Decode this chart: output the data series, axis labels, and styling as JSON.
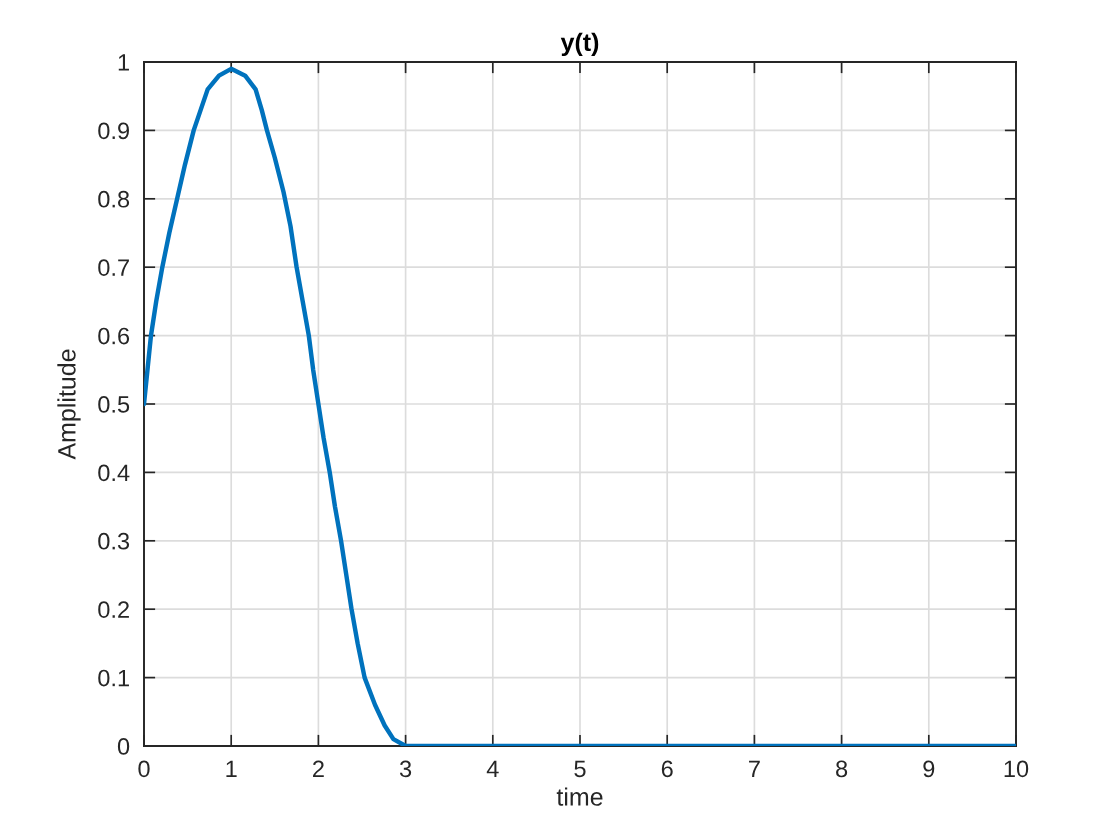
{
  "chart_data": {
    "type": "line",
    "title": "y(t)",
    "xlabel": "time",
    "ylabel": "Amplitude",
    "series": [
      {
        "color": "#0072bd",
        "x": [
          0,
          0.04,
          0.08,
          0.14,
          0.21,
          0.29,
          0.38,
          0.47,
          0.57,
          0.65,
          0.73,
          0.86,
          1.0,
          1.16,
          1.28,
          1.35,
          1.41,
          1.5,
          1.6,
          1.68,
          1.75,
          1.82,
          1.89,
          1.94,
          2.0,
          2.06,
          2.13,
          2.19,
          2.26,
          2.32,
          2.38,
          2.45,
          2.53,
          2.65,
          2.76,
          2.86,
          3.0,
          10
        ],
        "values": [
          0.5,
          0.55,
          0.6,
          0.65,
          0.7,
          0.75,
          0.8,
          0.85,
          0.9,
          0.93,
          0.96,
          0.98,
          0.99,
          0.98,
          0.96,
          0.93,
          0.9,
          0.86,
          0.81,
          0.76,
          0.7,
          0.65,
          0.6,
          0.55,
          0.5,
          0.45,
          0.4,
          0.35,
          0.3,
          0.25,
          0.2,
          0.15,
          0.1,
          0.06,
          0.03,
          0.01,
          0,
          0
        ]
      }
    ],
    "xlim": [
      0,
      10
    ],
    "ylim": [
      0,
      1
    ],
    "xticks": [
      0,
      1,
      2,
      3,
      4,
      5,
      6,
      7,
      8,
      9,
      10
    ],
    "yticks": [
      0,
      0.1,
      0.2,
      0.3,
      0.4,
      0.5,
      0.6,
      0.7,
      0.8,
      0.9,
      1
    ],
    "grid": true,
    "marker": "none",
    "line_style": "solid"
  }
}
